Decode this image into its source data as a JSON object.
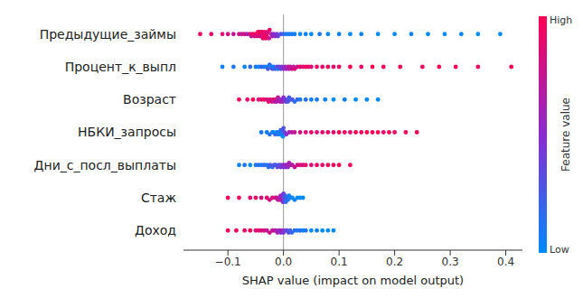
{
  "chart_data": {
    "type": "beeswarm",
    "xlabel": "SHAP value (impact on model output)",
    "xlim": [
      -0.18,
      0.43
    ],
    "xticks": [
      {
        "value": -0.1,
        "label": "−0.1"
      },
      {
        "value": 0,
        "label": "0.0"
      },
      0.1,
      0.2,
      0.3,
      0.4
    ],
    "colorbar": {
      "title": "Feature value",
      "range": [
        0,
        1
      ],
      "low_label": "Low",
      "high_label": "High",
      "colors": [
        "#008bfb",
        "#8a2bd0",
        "#ff0052"
      ]
    },
    "features": [
      {
        "name": "Предыдущие_займы",
        "points": [
          [
            -0.15,
            0.95
          ],
          [
            -0.13,
            0.9
          ],
          [
            -0.11,
            0.85
          ],
          [
            -0.1,
            0.8
          ],
          [
            -0.09,
            0.75
          ],
          [
            -0.08,
            0.8
          ],
          [
            -0.075,
            0.7
          ],
          [
            -0.07,
            0.85
          ],
          [
            -0.065,
            0.6
          ],
          [
            -0.06,
            0.9
          ],
          [
            -0.058,
            0.75
          ],
          [
            -0.055,
            0.95
          ],
          [
            -0.052,
            0.85
          ],
          [
            -0.05,
            0.9
          ],
          [
            -0.048,
            0.8
          ],
          [
            -0.046,
            1
          ],
          [
            -0.045,
            0.95
          ],
          [
            -0.043,
            0.85
          ],
          [
            -0.042,
            0.9
          ],
          [
            -0.04,
            1
          ],
          [
            -0.04,
            0.8
          ],
          [
            -0.038,
            0.95
          ],
          [
            -0.037,
            0.9
          ],
          [
            -0.035,
            0.85
          ],
          [
            -0.034,
            1
          ],
          [
            -0.033,
            0.9
          ],
          [
            -0.032,
            0.95
          ],
          [
            -0.03,
            0.8
          ],
          [
            -0.03,
            0.9
          ],
          [
            -0.028,
            0.85
          ],
          [
            -0.026,
            0.75
          ],
          [
            -0.025,
            0.9
          ],
          [
            -0.022,
            0.7
          ],
          [
            -0.02,
            0.6
          ],
          [
            -0.018,
            0.5
          ],
          [
            -0.015,
            0.55
          ],
          [
            -0.012,
            0.45
          ],
          [
            -0.01,
            0.4
          ],
          [
            -0.005,
            0.3
          ],
          [
            0,
            0.2
          ],
          [
            0.005,
            0.1
          ],
          [
            0.01,
            0.05
          ],
          [
            0.015,
            0.1
          ],
          [
            0.02,
            0.05
          ],
          [
            0.03,
            0
          ],
          [
            0.04,
            0.05
          ],
          [
            0.05,
            0
          ],
          [
            0.065,
            0.1
          ],
          [
            0.08,
            0
          ],
          [
            0.1,
            0.05
          ],
          [
            0.12,
            0
          ],
          [
            0.14,
            0.05
          ],
          [
            0.17,
            0
          ],
          [
            0.2,
            0
          ],
          [
            0.23,
            0.05
          ],
          [
            0.26,
            0
          ],
          [
            0.29,
            0
          ],
          [
            0.32,
            0.02
          ],
          [
            0.35,
            0
          ],
          [
            0.39,
            0
          ]
        ]
      },
      {
        "name": "Процент_к_выпл",
        "points": [
          [
            -0.11,
            0.05
          ],
          [
            -0.09,
            0.1
          ],
          [
            -0.07,
            0.05
          ],
          [
            -0.06,
            0.15
          ],
          [
            -0.05,
            0.1
          ],
          [
            -0.045,
            0
          ],
          [
            -0.04,
            0.2
          ],
          [
            -0.035,
            0.1
          ],
          [
            -0.03,
            0.05
          ],
          [
            -0.028,
            0.25
          ],
          [
            -0.025,
            0.15
          ],
          [
            -0.022,
            0.1
          ],
          [
            -0.02,
            0.3
          ],
          [
            -0.018,
            0.05
          ],
          [
            -0.015,
            0.2
          ],
          [
            -0.012,
            0.35
          ],
          [
            -0.01,
            0.1
          ],
          [
            -0.008,
            0.4
          ],
          [
            -0.005,
            0.3
          ],
          [
            -0.003,
            0.45
          ],
          [
            0,
            0.5
          ],
          [
            0.003,
            0.55
          ],
          [
            0.005,
            0.6
          ],
          [
            0.008,
            0.7
          ],
          [
            0.01,
            0.65
          ],
          [
            0.012,
            0.75
          ],
          [
            0.015,
            0.8
          ],
          [
            0.018,
            0.7
          ],
          [
            0.02,
            0.85
          ],
          [
            0.025,
            0.8
          ],
          [
            0.03,
            0.9
          ],
          [
            0.035,
            0.85
          ],
          [
            0.04,
            0.95
          ],
          [
            0.045,
            0.9
          ],
          [
            0.05,
            0.85
          ],
          [
            0.06,
            0.95
          ],
          [
            0.07,
            0.9
          ],
          [
            0.08,
            1
          ],
          [
            0.09,
            0.9
          ],
          [
            0.1,
            0.95
          ],
          [
            0.12,
            1
          ],
          [
            0.14,
            0.9
          ],
          [
            0.16,
            1
          ],
          [
            0.18,
            0.95
          ],
          [
            0.21,
            1
          ],
          [
            0.25,
            0.95
          ],
          [
            0.28,
            1
          ],
          [
            0.31,
            1
          ],
          [
            0.35,
            0.95
          ],
          [
            0.41,
            1
          ]
        ]
      },
      {
        "name": "Возраст",
        "points": [
          [
            -0.08,
            0.95
          ],
          [
            -0.065,
            0.9
          ],
          [
            -0.055,
            1
          ],
          [
            -0.045,
            0.85
          ],
          [
            -0.04,
            0.9
          ],
          [
            -0.035,
            0.95
          ],
          [
            -0.03,
            0.8
          ],
          [
            -0.027,
            0.9
          ],
          [
            -0.024,
            0.85
          ],
          [
            -0.021,
            0.75
          ],
          [
            -0.018,
            0.9
          ],
          [
            -0.016,
            0.7
          ],
          [
            -0.014,
            0.8
          ],
          [
            -0.012,
            0.65
          ],
          [
            -0.01,
            0.75
          ],
          [
            -0.008,
            0.6
          ],
          [
            -0.006,
            0.7
          ],
          [
            -0.004,
            0.55
          ],
          [
            -0.002,
            0.6
          ],
          [
            0,
            0.5
          ],
          [
            0.002,
            0.45
          ],
          [
            0.004,
            0.4
          ],
          [
            0.006,
            0.35
          ],
          [
            0.008,
            0.3
          ],
          [
            0.01,
            0.25
          ],
          [
            0.013,
            0.2
          ],
          [
            0.016,
            0.3
          ],
          [
            0.02,
            0.15
          ],
          [
            0.025,
            0.2
          ],
          [
            0.03,
            0.1
          ],
          [
            0.04,
            0.15
          ],
          [
            0.05,
            0.05
          ],
          [
            0.06,
            0.1
          ],
          [
            0.075,
            0.05
          ],
          [
            0.09,
            0
          ],
          [
            0.11,
            0.05
          ],
          [
            0.13,
            0
          ],
          [
            0.15,
            0
          ],
          [
            0.17,
            0
          ]
        ]
      },
      {
        "name": "НБКИ_запросы",
        "points": [
          [
            -0.04,
            0.1
          ],
          [
            -0.03,
            0.05
          ],
          [
            -0.025,
            0.15
          ],
          [
            -0.02,
            0.1
          ],
          [
            -0.018,
            0
          ],
          [
            -0.015,
            0.2
          ],
          [
            -0.012,
            0.05
          ],
          [
            -0.01,
            0.15
          ],
          [
            -0.008,
            0.1
          ],
          [
            -0.006,
            0
          ],
          [
            -0.005,
            0.2
          ],
          [
            -0.004,
            0.05
          ],
          [
            -0.003,
            0.1
          ],
          [
            -0.002,
            0.25
          ],
          [
            -0.001,
            0
          ],
          [
            0,
            0.3
          ],
          [
            0.002,
            0.35
          ],
          [
            0.005,
            0.5
          ],
          [
            0.01,
            0.6
          ],
          [
            0.015,
            0.7
          ],
          [
            0.02,
            0.75
          ],
          [
            0.03,
            0.8
          ],
          [
            0.04,
            0.85
          ],
          [
            0.05,
            0.9
          ],
          [
            0.06,
            0.85
          ],
          [
            0.07,
            0.9
          ],
          [
            0.08,
            0.95
          ],
          [
            0.09,
            0.9
          ],
          [
            0.1,
            1
          ],
          [
            0.11,
            0.95
          ],
          [
            0.12,
            0.9
          ],
          [
            0.13,
            1
          ],
          [
            0.14,
            0.95
          ],
          [
            0.15,
            1
          ],
          [
            0.16,
            0.95
          ],
          [
            0.17,
            1
          ],
          [
            0.18,
            0.9
          ],
          [
            0.19,
            1
          ],
          [
            0.2,
            0.95
          ],
          [
            0.22,
            1
          ],
          [
            0.24,
            1
          ]
        ]
      },
      {
        "name": "Дни_с_посл_выплаты",
        "points": [
          [
            -0.08,
            0.05
          ],
          [
            -0.07,
            0.1
          ],
          [
            -0.06,
            0
          ],
          [
            -0.05,
            0.1
          ],
          [
            -0.045,
            0.15
          ],
          [
            -0.04,
            0.05
          ],
          [
            -0.035,
            0.2
          ],
          [
            -0.03,
            0.1
          ],
          [
            -0.027,
            0.15
          ],
          [
            -0.024,
            0.25
          ],
          [
            -0.02,
            0.2
          ],
          [
            -0.017,
            0.3
          ],
          [
            -0.014,
            0.25
          ],
          [
            -0.011,
            0.35
          ],
          [
            -0.008,
            0.3
          ],
          [
            -0.005,
            0.4
          ],
          [
            -0.003,
            0.45
          ],
          [
            0,
            0.5
          ],
          [
            0.002,
            0.55
          ],
          [
            0.004,
            0.45
          ],
          [
            0.006,
            0.6
          ],
          [
            0.008,
            0.55
          ],
          [
            0.01,
            0.65
          ],
          [
            0.013,
            0.6
          ],
          [
            0.016,
            0.7
          ],
          [
            0.02,
            0.75
          ],
          [
            0.025,
            0.8
          ],
          [
            0.03,
            0.85
          ],
          [
            0.035,
            0.8
          ],
          [
            0.04,
            0.9
          ],
          [
            0.05,
            0.85
          ],
          [
            0.06,
            0.95
          ],
          [
            0.07,
            0.9
          ],
          [
            0.08,
            1
          ],
          [
            0.09,
            0.95
          ],
          [
            0.1,
            1
          ],
          [
            0.12,
            1
          ]
        ]
      },
      {
        "name": "Стаж",
        "points": [
          [
            -0.1,
            1
          ],
          [
            -0.08,
            0.95
          ],
          [
            -0.06,
            0.9
          ],
          [
            -0.05,
            0.95
          ],
          [
            -0.04,
            0.85
          ],
          [
            -0.03,
            0.9
          ],
          [
            -0.025,
            0.8
          ],
          [
            -0.02,
            0.85
          ],
          [
            -0.015,
            0.75
          ],
          [
            -0.012,
            0.8
          ],
          [
            -0.01,
            0.7
          ],
          [
            -0.008,
            0.65
          ],
          [
            -0.006,
            0.75
          ],
          [
            -0.005,
            0.6
          ],
          [
            -0.004,
            0.55
          ],
          [
            -0.003,
            0.65
          ],
          [
            -0.002,
            0.5
          ],
          [
            -0.001,
            0.45
          ],
          [
            0,
            0.4
          ],
          [
            0.001,
            0.35
          ],
          [
            0.002,
            0.3
          ],
          [
            0.003,
            0.25
          ],
          [
            0.004,
            0.2
          ],
          [
            0.006,
            0.15
          ],
          [
            0.008,
            0.1
          ],
          [
            0.01,
            0.05
          ],
          [
            0.013,
            0.1
          ],
          [
            0.016,
            0
          ],
          [
            0.02,
            0.05
          ],
          [
            0.025,
            0
          ],
          [
            0.03,
            0
          ],
          [
            0.035,
            0
          ]
        ]
      },
      {
        "name": "Доход",
        "points": [
          [
            -0.1,
            1
          ],
          [
            -0.085,
            0.95
          ],
          [
            -0.07,
            0.9
          ],
          [
            -0.06,
            1
          ],
          [
            -0.05,
            0.85
          ],
          [
            -0.045,
            0.9
          ],
          [
            -0.04,
            0.8
          ],
          [
            -0.035,
            0.85
          ],
          [
            -0.03,
            0.75
          ],
          [
            -0.025,
            0.8
          ],
          [
            -0.02,
            0.7
          ],
          [
            -0.017,
            0.75
          ],
          [
            -0.014,
            0.65
          ],
          [
            -0.011,
            0.6
          ],
          [
            -0.008,
            0.55
          ],
          [
            -0.005,
            0.5
          ],
          [
            -0.003,
            0.6
          ],
          [
            0,
            0.45
          ],
          [
            0.003,
            0.4
          ],
          [
            0.006,
            0.35
          ],
          [
            0.009,
            0.3
          ],
          [
            0.012,
            0.25
          ],
          [
            0.015,
            0.2
          ],
          [
            0.02,
            0.15
          ],
          [
            0.025,
            0.1
          ],
          [
            0.03,
            0.15
          ],
          [
            0.035,
            0.05
          ],
          [
            0.04,
            0.1
          ],
          [
            0.05,
            0
          ],
          [
            0.06,
            0.05
          ],
          [
            0.07,
            0
          ],
          [
            0.08,
            0
          ],
          [
            0.09,
            0
          ]
        ]
      }
    ]
  }
}
